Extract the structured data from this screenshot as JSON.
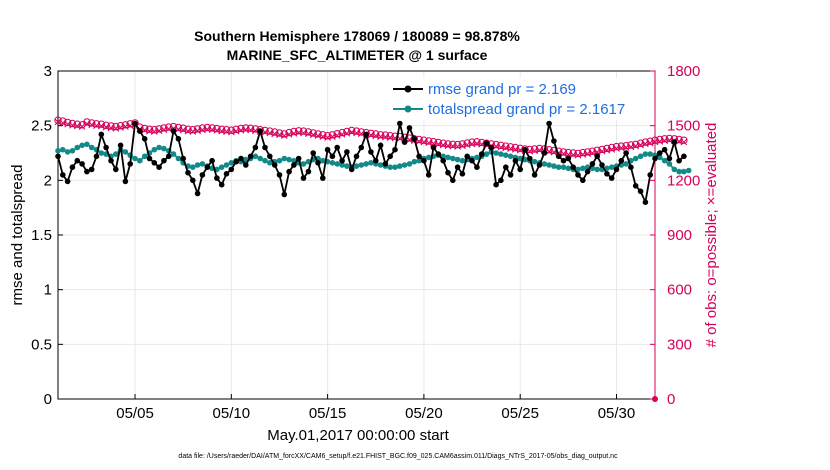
{
  "chart_data": {
    "type": "line",
    "title": "Southern Hemisphere 178069 / 180089 = 98.878%",
    "subtitle": "MARINE_SFC_ALTIMETER @ 1 surface",
    "xlabel": "May.01,2017 00:00:00 start",
    "ylabel": "rmse and totalspread",
    "ylabel_right": "# of obs: o=possible; ×=evaluated",
    "xlim": [
      1,
      32
    ],
    "ylim": [
      0,
      3
    ],
    "ylim_right": [
      0,
      1800
    ],
    "x_tick_labels": [
      "05/05",
      "05/10",
      "05/15",
      "05/20",
      "05/25",
      "05/30"
    ],
    "x_tick_values": [
      5,
      10,
      15,
      20,
      25,
      30
    ],
    "y_ticks": [
      "0",
      "0.5",
      "1",
      "1.5",
      "2",
      "2.5",
      "3"
    ],
    "y_ticks_right": [
      "0",
      "300",
      "600",
      "900",
      "1200",
      "1500",
      "1800"
    ],
    "grid": true,
    "legend": "top-right",
    "x_start": 1.0,
    "x_step": 0.25,
    "series": [
      {
        "name": "rmse grand pr = 2.169",
        "color": "#000000",
        "axis": "left",
        "values": [
          2.22,
          2.05,
          1.99,
          2.12,
          2.18,
          2.15,
          2.08,
          2.1,
          2.22,
          2.42,
          2.3,
          2.18,
          2.1,
          2.32,
          1.99,
          2.15,
          2.52,
          2.45,
          2.38,
          2.2,
          2.16,
          2.12,
          2.18,
          2.22,
          2.45,
          2.38,
          2.2,
          2.07,
          2.0,
          1.88,
          2.05,
          2.12,
          2.18,
          2.02,
          1.96,
          2.06,
          2.1,
          2.17,
          2.2,
          2.14,
          2.22,
          2.3,
          2.45,
          2.3,
          2.22,
          2.14,
          2.05,
          1.87,
          2.08,
          2.14,
          2.2,
          2.02,
          2.08,
          2.25,
          2.16,
          2.02,
          2.28,
          2.22,
          2.3,
          2.18,
          2.26,
          2.1,
          2.22,
          2.3,
          2.42,
          2.26,
          2.18,
          2.32,
          2.15,
          2.22,
          2.28,
          2.52,
          2.35,
          2.48,
          2.38,
          2.22,
          2.18,
          2.05,
          2.3,
          2.24,
          2.18,
          2.07,
          2.0,
          2.12,
          2.06,
          2.22,
          2.18,
          2.12,
          2.24,
          2.34,
          2.3,
          1.96,
          2.0,
          2.12,
          2.05,
          2.18,
          2.1,
          2.28,
          2.2,
          2.05,
          2.14,
          2.25,
          2.52,
          2.36,
          2.22,
          2.18,
          2.2,
          2.12,
          2.05,
          2.0,
          2.08,
          2.15,
          2.22,
          2.14,
          2.06,
          2.02,
          2.1,
          2.18,
          2.25,
          2.12,
          1.95,
          1.9,
          1.8,
          2.05,
          2.2,
          2.25,
          2.28,
          2.2,
          2.35,
          2.18,
          2.22
        ]
      },
      {
        "name": "totalspread grand pr = 2.1617",
        "color": "#138a8a",
        "axis": "left",
        "values": [
          2.27,
          2.28,
          2.26,
          2.27,
          2.3,
          2.32,
          2.33,
          2.3,
          2.28,
          2.25,
          2.24,
          2.22,
          2.24,
          2.28,
          2.26,
          2.23,
          2.2,
          2.18,
          2.22,
          2.25,
          2.28,
          2.3,
          2.29,
          2.27,
          2.24,
          2.2,
          2.16,
          2.13,
          2.12,
          2.14,
          2.15,
          2.13,
          2.11,
          2.1,
          2.12,
          2.14,
          2.16,
          2.18,
          2.17,
          2.19,
          2.2,
          2.22,
          2.2,
          2.18,
          2.16,
          2.17,
          2.18,
          2.2,
          2.19,
          2.18,
          2.16,
          2.15,
          2.17,
          2.19,
          2.2,
          2.18,
          2.17,
          2.16,
          2.15,
          2.14,
          2.13,
          2.12,
          2.13,
          2.14,
          2.15,
          2.16,
          2.15,
          2.14,
          2.13,
          2.12,
          2.12,
          2.13,
          2.14,
          2.15,
          2.17,
          2.18,
          2.2,
          2.21,
          2.22,
          2.23,
          2.22,
          2.21,
          2.2,
          2.19,
          2.18,
          2.19,
          2.2,
          2.21,
          2.22,
          2.24,
          2.26,
          2.25,
          2.24,
          2.23,
          2.22,
          2.21,
          2.2,
          2.19,
          2.18,
          2.17,
          2.16,
          2.15,
          2.14,
          2.13,
          2.12,
          2.12,
          2.11,
          2.1,
          2.1,
          2.11,
          2.12,
          2.11,
          2.1,
          2.1,
          2.11,
          2.12,
          2.13,
          2.14,
          2.15,
          2.18,
          2.2,
          2.22,
          2.24,
          2.24,
          2.23,
          2.21,
          2.18,
          2.15,
          2.1,
          2.08,
          2.08,
          2.09
        ]
      },
      {
        "name": "obs possible",
        "color": "#d6005a",
        "axis": "right",
        "marker": "circle",
        "values": [
          1530,
          1525,
          1518,
          1512,
          1508,
          1505,
          1520,
          1515,
          1510,
          1508,
          1502,
          1498,
          1495,
          1500,
          1505,
          1510,
          1515,
          1492,
          1485,
          1480,
          1478,
          1482,
          1488,
          1492,
          1495,
          1490,
          1486,
          1480,
          1478,
          1482,
          1487,
          1490,
          1488,
          1484,
          1480,
          1478,
          1475,
          1480,
          1485,
          1488,
          1486,
          1482,
          1478,
          1474,
          1470,
          1465,
          1460,
          1455,
          1462,
          1468,
          1472,
          1470,
          1466,
          1460,
          1455,
          1450,
          1445,
          1450,
          1456,
          1462,
          1468,
          1474,
          1470,
          1466,
          1462,
          1458,
          1454,
          1450,
          1448,
          1445,
          1442,
          1440,
          1436,
          1432,
          1428,
          1424,
          1420,
          1416,
          1412,
          1408,
          1404,
          1400,
          1398,
          1396,
          1400,
          1405,
          1410,
          1412,
          1408,
          1404,
          1400,
          1396,
          1392,
          1388,
          1384,
          1380,
          1376,
          1372,
          1370,
          1372,
          1375,
          1372,
          1368,
          1364,
          1360,
          1356,
          1352,
          1350,
          1348,
          1352,
          1356,
          1360,
          1365,
          1370,
          1375,
          1380,
          1385,
          1388,
          1390,
          1394,
          1398,
          1404,
          1410,
          1415,
          1420,
          1424,
          1428,
          1430,
          1428,
          1424,
          1420
        ]
      },
      {
        "name": "obs evaluated",
        "color": "#d6005a",
        "axis": "right",
        "marker": "x",
        "values": [
          1520,
          1515,
          1508,
          1502,
          1498,
          1495,
          1510,
          1505,
          1500,
          1498,
          1492,
          1488,
          1485,
          1490,
          1495,
          1500,
          1505,
          1482,
          1475,
          1470,
          1468,
          1472,
          1478,
          1482,
          1485,
          1480,
          1476,
          1470,
          1468,
          1472,
          1477,
          1480,
          1478,
          1474,
          1470,
          1468,
          1465,
          1470,
          1475,
          1478,
          1476,
          1472,
          1468,
          1464,
          1460,
          1455,
          1450,
          1445,
          1452,
          1458,
          1462,
          1460,
          1456,
          1450,
          1445,
          1440,
          1435,
          1440,
          1446,
          1452,
          1458,
          1464,
          1460,
          1456,
          1452,
          1448,
          1444,
          1440,
          1438,
          1435,
          1432,
          1430,
          1426,
          1422,
          1418,
          1414,
          1410,
          1406,
          1402,
          1398,
          1394,
          1390,
          1388,
          1386,
          1390,
          1395,
          1400,
          1402,
          1398,
          1394,
          1390,
          1386,
          1382,
          1378,
          1374,
          1370,
          1366,
          1362,
          1360,
          1362,
          1365,
          1362,
          1358,
          1354,
          1350,
          1346,
          1342,
          1340,
          1338,
          1342,
          1346,
          1350,
          1355,
          1360,
          1365,
          1370,
          1375,
          1378,
          1380,
          1384,
          1388,
          1394,
          1400,
          1405,
          1410,
          1414,
          1418,
          1420,
          1418,
          1414,
          1410
        ]
      }
    ],
    "footnote": "data file: /Users/raeder/DAI/ATM_forcXX/CAM6_setup/f.e21.FHIST_BGC.f09_025.CAM6assim.011/Diags_NTrS_2017-05/obs_diag_output.nc"
  }
}
